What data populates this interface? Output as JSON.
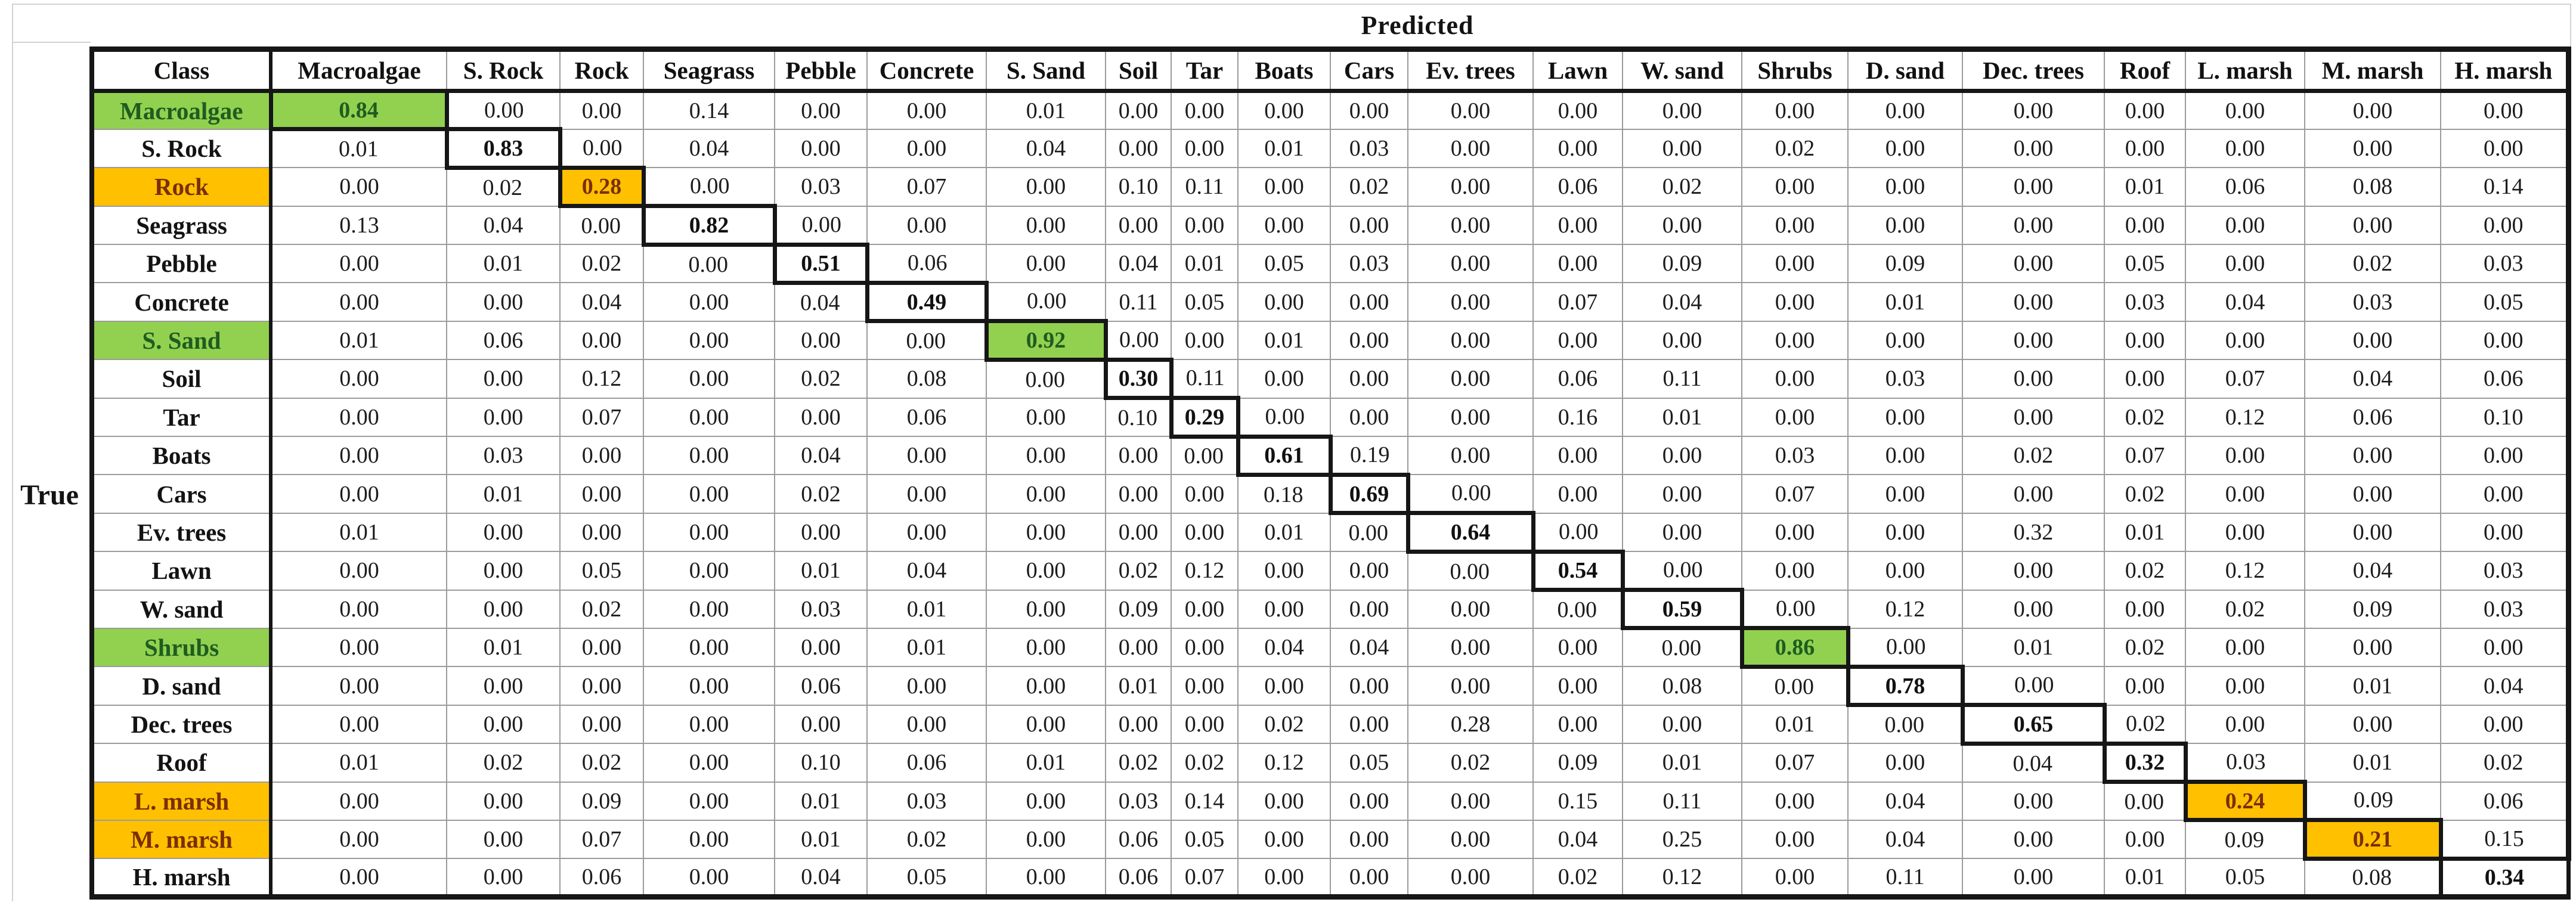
{
  "predicted_label": "Predicted",
  "true_label": "True",
  "corner_label": "Class",
  "colors": {
    "green_fill": "#92d050",
    "orange_fill": "#ffc000",
    "green_text": "#1f5c1f",
    "orange_text": "#7b2e04",
    "thick_border": "#161616",
    "thin_border": "#9b9b9b"
  },
  "chart_data": {
    "type": "heatmap",
    "x_axis_label": "Predicted",
    "y_axis_label": "True",
    "columns": [
      "Macroalgae",
      "S. Rock",
      "Rock",
      "Seagrass",
      "Pebble",
      "Concrete",
      "S. Sand",
      "Soil",
      "Tar",
      "Boats",
      "Cars",
      "Ev. trees",
      "Lawn",
      "W. sand",
      "Shrubs",
      "D. sand",
      "Dec. trees",
      "Roof",
      "L. marsh",
      "M. marsh",
      "H. marsh"
    ],
    "rows": [
      {
        "label": "Macroalgae",
        "highlight": "green",
        "values": [
          "0.84",
          "0.00",
          "0.00",
          "0.14",
          "0.00",
          "0.00",
          "0.01",
          "0.00",
          "0.00",
          "0.00",
          "0.00",
          "0.00",
          "0.00",
          "0.00",
          "0.00",
          "0.00",
          "0.00",
          "0.00",
          "0.00",
          "0.00",
          "0.00"
        ]
      },
      {
        "label": "S. Rock",
        "highlight": "none",
        "values": [
          "0.01",
          "0.83",
          "0.00",
          "0.04",
          "0.00",
          "0.00",
          "0.04",
          "0.00",
          "0.00",
          "0.01",
          "0.03",
          "0.00",
          "0.00",
          "0.00",
          "0.02",
          "0.00",
          "0.00",
          "0.00",
          "0.00",
          "0.00",
          "0.00"
        ]
      },
      {
        "label": "Rock",
        "highlight": "orange",
        "values": [
          "0.00",
          "0.02",
          "0.28",
          "0.00",
          "0.03",
          "0.07",
          "0.00",
          "0.10",
          "0.11",
          "0.00",
          "0.02",
          "0.00",
          "0.06",
          "0.02",
          "0.00",
          "0.00",
          "0.00",
          "0.01",
          "0.06",
          "0.08",
          "0.14"
        ]
      },
      {
        "label": "Seagrass",
        "highlight": "none",
        "values": [
          "0.13",
          "0.04",
          "0.00",
          "0.82",
          "0.00",
          "0.00",
          "0.00",
          "0.00",
          "0.00",
          "0.00",
          "0.00",
          "0.00",
          "0.00",
          "0.00",
          "0.00",
          "0.00",
          "0.00",
          "0.00",
          "0.00",
          "0.00",
          "0.00"
        ]
      },
      {
        "label": "Pebble",
        "highlight": "none",
        "values": [
          "0.00",
          "0.01",
          "0.02",
          "0.00",
          "0.51",
          "0.06",
          "0.00",
          "0.04",
          "0.01",
          "0.05",
          "0.03",
          "0.00",
          "0.00",
          "0.09",
          "0.00",
          "0.09",
          "0.00",
          "0.05",
          "0.00",
          "0.02",
          "0.03"
        ]
      },
      {
        "label": "Concrete",
        "highlight": "none",
        "values": [
          "0.00",
          "0.00",
          "0.04",
          "0.00",
          "0.04",
          "0.49",
          "0.00",
          "0.11",
          "0.05",
          "0.00",
          "0.00",
          "0.00",
          "0.07",
          "0.04",
          "0.00",
          "0.01",
          "0.00",
          "0.03",
          "0.04",
          "0.03",
          "0.05"
        ]
      },
      {
        "label": "S. Sand",
        "highlight": "green",
        "values": [
          "0.01",
          "0.06",
          "0.00",
          "0.00",
          "0.00",
          "0.00",
          "0.92",
          "0.00",
          "0.00",
          "0.01",
          "0.00",
          "0.00",
          "0.00",
          "0.00",
          "0.00",
          "0.00",
          "0.00",
          "0.00",
          "0.00",
          "0.00",
          "0.00"
        ]
      },
      {
        "label": "Soil",
        "highlight": "none",
        "values": [
          "0.00",
          "0.00",
          "0.12",
          "0.00",
          "0.02",
          "0.08",
          "0.00",
          "0.30",
          "0.11",
          "0.00",
          "0.00",
          "0.00",
          "0.06",
          "0.11",
          "0.00",
          "0.03",
          "0.00",
          "0.00",
          "0.07",
          "0.04",
          "0.06"
        ]
      },
      {
        "label": "Tar",
        "highlight": "none",
        "values": [
          "0.00",
          "0.00",
          "0.07",
          "0.00",
          "0.00",
          "0.06",
          "0.00",
          "0.10",
          "0.29",
          "0.00",
          "0.00",
          "0.00",
          "0.16",
          "0.01",
          "0.00",
          "0.00",
          "0.00",
          "0.02",
          "0.12",
          "0.06",
          "0.10"
        ]
      },
      {
        "label": "Boats",
        "highlight": "none",
        "values": [
          "0.00",
          "0.03",
          "0.00",
          "0.00",
          "0.04",
          "0.00",
          "0.00",
          "0.00",
          "0.00",
          "0.61",
          "0.19",
          "0.00",
          "0.00",
          "0.00",
          "0.03",
          "0.00",
          "0.02",
          "0.07",
          "0.00",
          "0.00",
          "0.00"
        ]
      },
      {
        "label": "Cars",
        "highlight": "none",
        "values": [
          "0.00",
          "0.01",
          "0.00",
          "0.00",
          "0.02",
          "0.00",
          "0.00",
          "0.00",
          "0.00",
          "0.18",
          "0.69",
          "0.00",
          "0.00",
          "0.00",
          "0.07",
          "0.00",
          "0.00",
          "0.02",
          "0.00",
          "0.00",
          "0.00"
        ]
      },
      {
        "label": "Ev. trees",
        "highlight": "none",
        "values": [
          "0.01",
          "0.00",
          "0.00",
          "0.00",
          "0.00",
          "0.00",
          "0.00",
          "0.00",
          "0.00",
          "0.01",
          "0.00",
          "0.64",
          "0.00",
          "0.00",
          "0.00",
          "0.00",
          "0.32",
          "0.01",
          "0.00",
          "0.00",
          "0.00"
        ]
      },
      {
        "label": "Lawn",
        "highlight": "none",
        "values": [
          "0.00",
          "0.00",
          "0.05",
          "0.00",
          "0.01",
          "0.04",
          "0.00",
          "0.02",
          "0.12",
          "0.00",
          "0.00",
          "0.00",
          "0.54",
          "0.00",
          "0.00",
          "0.00",
          "0.00",
          "0.02",
          "0.12",
          "0.04",
          "0.03"
        ]
      },
      {
        "label": "W. sand",
        "highlight": "none",
        "values": [
          "0.00",
          "0.00",
          "0.02",
          "0.00",
          "0.03",
          "0.01",
          "0.00",
          "0.09",
          "0.00",
          "0.00",
          "0.00",
          "0.00",
          "0.00",
          "0.59",
          "0.00",
          "0.12",
          "0.00",
          "0.00",
          "0.02",
          "0.09",
          "0.03"
        ]
      },
      {
        "label": "Shrubs",
        "highlight": "green",
        "values": [
          "0.00",
          "0.01",
          "0.00",
          "0.00",
          "0.00",
          "0.01",
          "0.00",
          "0.00",
          "0.00",
          "0.04",
          "0.04",
          "0.00",
          "0.00",
          "0.00",
          "0.86",
          "0.00",
          "0.01",
          "0.02",
          "0.00",
          "0.00",
          "0.00"
        ]
      },
      {
        "label": "D. sand",
        "highlight": "none",
        "values": [
          "0.00",
          "0.00",
          "0.00",
          "0.00",
          "0.06",
          "0.00",
          "0.00",
          "0.01",
          "0.00",
          "0.00",
          "0.00",
          "0.00",
          "0.00",
          "0.08",
          "0.00",
          "0.78",
          "0.00",
          "0.00",
          "0.00",
          "0.01",
          "0.04"
        ]
      },
      {
        "label": "Dec. trees",
        "highlight": "none",
        "values": [
          "0.00",
          "0.00",
          "0.00",
          "0.00",
          "0.00",
          "0.00",
          "0.00",
          "0.00",
          "0.00",
          "0.02",
          "0.00",
          "0.28",
          "0.00",
          "0.00",
          "0.01",
          "0.00",
          "0.65",
          "0.02",
          "0.00",
          "0.00",
          "0.00"
        ]
      },
      {
        "label": "Roof",
        "highlight": "none",
        "values": [
          "0.01",
          "0.02",
          "0.02",
          "0.00",
          "0.10",
          "0.06",
          "0.01",
          "0.02",
          "0.02",
          "0.12",
          "0.05",
          "0.02",
          "0.09",
          "0.01",
          "0.07",
          "0.00",
          "0.04",
          "0.32",
          "0.03",
          "0.01",
          "0.02"
        ]
      },
      {
        "label": "L. marsh",
        "highlight": "orange",
        "values": [
          "0.00",
          "0.00",
          "0.09",
          "0.00",
          "0.01",
          "0.03",
          "0.00",
          "0.03",
          "0.14",
          "0.00",
          "0.00",
          "0.00",
          "0.15",
          "0.11",
          "0.00",
          "0.04",
          "0.00",
          "0.00",
          "0.24",
          "0.09",
          "0.06"
        ]
      },
      {
        "label": "M. marsh",
        "highlight": "orange",
        "values": [
          "0.00",
          "0.00",
          "0.07",
          "0.00",
          "0.01",
          "0.02",
          "0.00",
          "0.06",
          "0.05",
          "0.00",
          "0.00",
          "0.00",
          "0.04",
          "0.25",
          "0.00",
          "0.04",
          "0.00",
          "0.00",
          "0.09",
          "0.21",
          "0.15"
        ]
      },
      {
        "label": "H. marsh",
        "highlight": "none",
        "values": [
          "0.00",
          "0.00",
          "0.06",
          "0.00",
          "0.04",
          "0.05",
          "0.00",
          "0.06",
          "0.07",
          "0.00",
          "0.00",
          "0.00",
          "0.02",
          "0.12",
          "0.00",
          "0.11",
          "0.00",
          "0.01",
          "0.05",
          "0.08",
          "0.34"
        ]
      }
    ]
  }
}
